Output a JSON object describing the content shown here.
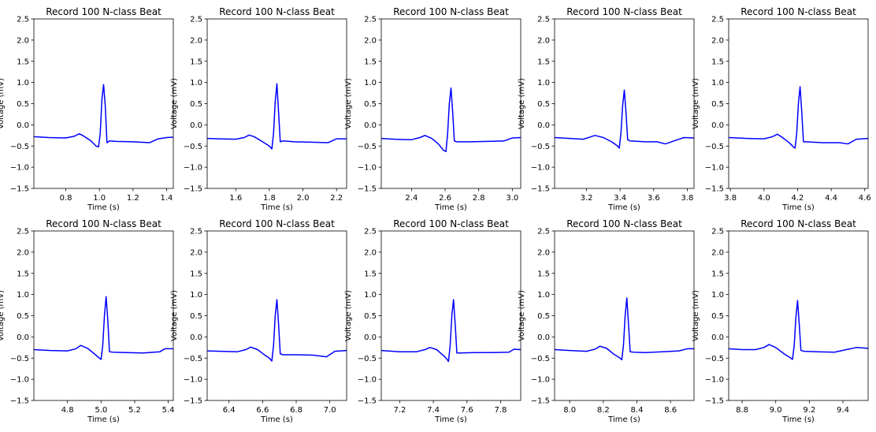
{
  "figure": {
    "rows": 2,
    "cols": 5,
    "line_color": "#0000ff",
    "frame_color": "#000000",
    "background": "#ffffff"
  },
  "chart_data": [
    {
      "type": "line",
      "title": "Record 100 N-class Beat",
      "xlabel": "Time (s)",
      "ylabel": "Voltage (mV)",
      "xlim": [
        0.61,
        1.44
      ],
      "ylim": [
        -1.5,
        2.5
      ],
      "xticks": [
        "0.8",
        "1.0",
        "1.2",
        "1.4"
      ],
      "yticks": [
        "−1.5",
        "−1.0",
        "−0.5",
        "0.0",
        "0.5",
        "1.0",
        "1.5",
        "2.0",
        "2.5"
      ],
      "series": [
        {
          "x": [
            0.61,
            0.7,
            0.8,
            0.85,
            0.88,
            0.9,
            0.95,
            0.98,
            0.995,
            1.005,
            1.015,
            1.025,
            1.035,
            1.045,
            1.06,
            1.1,
            1.2,
            1.3,
            1.35,
            1.4,
            1.44
          ],
          "y": [
            -0.28,
            -0.3,
            -0.31,
            -0.27,
            -0.21,
            -0.25,
            -0.38,
            -0.5,
            -0.52,
            -0.2,
            0.6,
            0.95,
            0.45,
            -0.42,
            -0.38,
            -0.39,
            -0.4,
            -0.42,
            -0.33,
            -0.3,
            -0.29
          ]
        }
      ]
    },
    {
      "type": "line",
      "title": "Record 100 N-class Beat",
      "xlabel": "Time (s)",
      "ylabel": "Voltage (mV)",
      "xlim": [
        1.43,
        2.26
      ],
      "ylim": [
        -1.5,
        2.5
      ],
      "xticks": [
        "1.6",
        "1.8",
        "2.0",
        "2.2"
      ],
      "yticks": [
        "−1.5",
        "−1.0",
        "−0.5",
        "0.0",
        "0.5",
        "1.0",
        "1.5",
        "2.0",
        "2.5"
      ],
      "series": [
        {
          "x": [
            1.43,
            1.5,
            1.6,
            1.65,
            1.68,
            1.71,
            1.76,
            1.8,
            1.815,
            1.825,
            1.835,
            1.845,
            1.855,
            1.865,
            1.88,
            1.95,
            2.05,
            2.15,
            2.2,
            2.26
          ],
          "y": [
            -0.32,
            -0.33,
            -0.34,
            -0.3,
            -0.24,
            -0.28,
            -0.4,
            -0.5,
            -0.57,
            -0.2,
            0.55,
            0.97,
            0.3,
            -0.4,
            -0.38,
            -0.4,
            -0.41,
            -0.42,
            -0.33,
            -0.33
          ]
        }
      ]
    },
    {
      "type": "line",
      "title": "Record 100 N-class Beat",
      "xlabel": "Time (s)",
      "ylabel": "Voltage (mV)",
      "xlim": [
        2.22,
        3.05
      ],
      "ylim": [
        -1.5,
        2.5
      ],
      "xticks": [
        "2.4",
        "2.6",
        "2.8",
        "3.0"
      ],
      "yticks": [
        "−1.5",
        "−1.0",
        "−0.5",
        "0.0",
        "0.5",
        "1.0",
        "1.5",
        "2.0",
        "2.5"
      ],
      "series": [
        {
          "x": [
            2.22,
            2.3,
            2.4,
            2.45,
            2.48,
            2.52,
            2.56,
            2.59,
            2.605,
            2.615,
            2.625,
            2.635,
            2.645,
            2.655,
            2.67,
            2.75,
            2.85,
            2.95,
            3.0,
            3.05
          ],
          "y": [
            -0.32,
            -0.34,
            -0.35,
            -0.3,
            -0.25,
            -0.32,
            -0.45,
            -0.6,
            -0.63,
            -0.2,
            0.5,
            0.87,
            0.3,
            -0.38,
            -0.4,
            -0.4,
            -0.39,
            -0.38,
            -0.31,
            -0.3
          ]
        }
      ]
    },
    {
      "type": "line",
      "title": "Record 100 N-class Beat",
      "xlabel": "Time (s)",
      "ylabel": "Voltage (mV)",
      "xlim": [
        3.01,
        3.84
      ],
      "ylim": [
        -1.5,
        2.5
      ],
      "xticks": [
        "3.2",
        "3.4",
        "3.6",
        "3.8"
      ],
      "yticks": [
        "−1.5",
        "−1.0",
        "−0.5",
        "0.0",
        "0.5",
        "1.0",
        "1.5",
        "2.0",
        "2.5"
      ],
      "series": [
        {
          "x": [
            3.01,
            3.1,
            3.18,
            3.22,
            3.25,
            3.3,
            3.35,
            3.385,
            3.395,
            3.405,
            3.415,
            3.425,
            3.435,
            3.445,
            3.46,
            3.55,
            3.62,
            3.67,
            3.72,
            3.78,
            3.84
          ],
          "y": [
            -0.3,
            -0.32,
            -0.34,
            -0.29,
            -0.25,
            -0.3,
            -0.4,
            -0.5,
            -0.55,
            -0.2,
            0.45,
            0.82,
            0.3,
            -0.35,
            -0.38,
            -0.4,
            -0.4,
            -0.45,
            -0.38,
            -0.3,
            -0.31
          ]
        }
      ]
    },
    {
      "type": "line",
      "title": "Record 100 N-class Beat",
      "xlabel": "Time (s)",
      "ylabel": "Voltage (mV)",
      "xlim": [
        3.79,
        4.62
      ],
      "ylim": [
        -1.5,
        2.5
      ],
      "xticks": [
        "3.8",
        "4.0",
        "4.2",
        "4.4",
        "4.6"
      ],
      "yticks": [
        "−1.5",
        "−1.0",
        "−0.5",
        "0.0",
        "0.5",
        "1.0",
        "1.5",
        "2.0",
        "2.5"
      ],
      "series": [
        {
          "x": [
            3.79,
            3.9,
            4.0,
            4.05,
            4.08,
            4.11,
            4.15,
            4.175,
            4.185,
            4.195,
            4.205,
            4.215,
            4.225,
            4.235,
            4.25,
            4.35,
            4.45,
            4.5,
            4.55,
            4.62
          ],
          "y": [
            -0.3,
            -0.32,
            -0.33,
            -0.28,
            -0.22,
            -0.3,
            -0.42,
            -0.52,
            -0.55,
            -0.2,
            0.5,
            0.9,
            0.3,
            -0.4,
            -0.4,
            -0.42,
            -0.42,
            -0.45,
            -0.34,
            -0.32
          ]
        }
      ]
    },
    {
      "type": "line",
      "title": "Record 100 N-class Beat",
      "xlabel": "Time (s)",
      "ylabel": "Voltage (mV)",
      "xlim": [
        4.6,
        5.43
      ],
      "ylim": [
        -1.5,
        2.5
      ],
      "xticks": [
        "4.8",
        "5.0",
        "5.2",
        "5.4"
      ],
      "yticks": [
        "−1.5",
        "−1.0",
        "−0.5",
        "0.0",
        "0.5",
        "1.0",
        "1.5",
        "2.0",
        "2.5"
      ],
      "series": [
        {
          "x": [
            4.6,
            4.7,
            4.8,
            4.85,
            4.88,
            4.92,
            4.96,
            4.99,
            5.0,
            5.01,
            5.02,
            5.03,
            5.04,
            5.05,
            5.07,
            5.15,
            5.25,
            5.35,
            5.38,
            5.43
          ],
          "y": [
            -0.3,
            -0.32,
            -0.33,
            -0.28,
            -0.2,
            -0.27,
            -0.4,
            -0.5,
            -0.53,
            -0.2,
            0.5,
            0.95,
            0.4,
            -0.35,
            -0.36,
            -0.37,
            -0.38,
            -0.35,
            -0.28,
            -0.28
          ]
        }
      ]
    },
    {
      "type": "line",
      "title": "Record 100 N-class Beat",
      "xlabel": "Time (s)",
      "ylabel": "Voltage (mV)",
      "xlim": [
        6.27,
        7.1
      ],
      "ylim": [
        -1.5,
        2.5
      ],
      "xticks": [
        "6.4",
        "6.6",
        "6.8",
        "7.0"
      ],
      "yticks": [
        "−1.5",
        "−1.0",
        "−0.5",
        "0.0",
        "0.5",
        "1.0",
        "1.5",
        "2.0",
        "2.5"
      ],
      "series": [
        {
          "x": [
            6.27,
            6.35,
            6.45,
            6.5,
            6.53,
            6.57,
            6.61,
            6.64,
            6.655,
            6.665,
            6.675,
            6.685,
            6.695,
            6.705,
            6.72,
            6.8,
            6.9,
            6.98,
            7.03,
            7.1
          ],
          "y": [
            -0.33,
            -0.34,
            -0.35,
            -0.3,
            -0.24,
            -0.3,
            -0.42,
            -0.5,
            -0.57,
            -0.2,
            0.5,
            0.88,
            0.3,
            -0.4,
            -0.42,
            -0.42,
            -0.43,
            -0.47,
            -0.34,
            -0.32
          ]
        }
      ]
    },
    {
      "type": "line",
      "title": "Record 100 N-class Beat",
      "xlabel": "Time (s)",
      "ylabel": "Voltage (mV)",
      "xlim": [
        7.09,
        7.92
      ],
      "ylim": [
        -1.5,
        2.5
      ],
      "xticks": [
        "7.2",
        "7.4",
        "7.6",
        "7.8"
      ],
      "yticks": [
        "−1.5",
        "−1.0",
        "−0.5",
        "0.0",
        "0.5",
        "1.0",
        "1.5",
        "2.0",
        "2.5"
      ],
      "series": [
        {
          "x": [
            7.09,
            7.2,
            7.3,
            7.35,
            7.38,
            7.42,
            7.46,
            7.48,
            7.49,
            7.5,
            7.51,
            7.52,
            7.53,
            7.54,
            7.56,
            7.65,
            7.75,
            7.85,
            7.88,
            7.92
          ],
          "y": [
            -0.32,
            -0.35,
            -0.35,
            -0.3,
            -0.25,
            -0.3,
            -0.44,
            -0.52,
            -0.58,
            -0.2,
            0.5,
            0.88,
            0.3,
            -0.38,
            -0.38,
            -0.37,
            -0.37,
            -0.36,
            -0.29,
            -0.3
          ]
        }
      ]
    },
    {
      "type": "line",
      "title": "Record 100 N-class Beat",
      "xlabel": "Time (s)",
      "ylabel": "Voltage (mV)",
      "xlim": [
        7.91,
        8.74
      ],
      "ylim": [
        -1.5,
        2.5
      ],
      "xticks": [
        "8.0",
        "8.2",
        "8.4",
        "8.6"
      ],
      "yticks": [
        "−1.5",
        "−1.0",
        "−0.5",
        "0.0",
        "0.5",
        "1.0",
        "1.5",
        "2.0",
        "2.5"
      ],
      "series": [
        {
          "x": [
            7.91,
            8.0,
            8.1,
            8.15,
            8.18,
            8.22,
            8.26,
            8.3,
            8.31,
            8.32,
            8.33,
            8.34,
            8.35,
            8.36,
            8.38,
            8.45,
            8.55,
            8.65,
            8.7,
            8.74
          ],
          "y": [
            -0.3,
            -0.32,
            -0.34,
            -0.29,
            -0.22,
            -0.27,
            -0.4,
            -0.5,
            -0.54,
            -0.2,
            0.5,
            0.92,
            0.3,
            -0.35,
            -0.36,
            -0.37,
            -0.35,
            -0.33,
            -0.28,
            -0.28
          ]
        }
      ]
    },
    {
      "type": "line",
      "title": "Record 100 N-class Beat",
      "xlabel": "Time (s)",
      "ylabel": "Voltage (mV)",
      "xlim": [
        8.72,
        9.55
      ],
      "ylim": [
        -1.5,
        2.5
      ],
      "xticks": [
        "8.8",
        "9.0",
        "9.2",
        "9.4"
      ],
      "yticks": [
        "−1.5",
        "−1.0",
        "−0.5",
        "0.0",
        "0.5",
        "1.0",
        "1.5",
        "2.0",
        "2.5"
      ],
      "series": [
        {
          "x": [
            8.72,
            8.8,
            8.88,
            8.93,
            8.96,
            9.0,
            9.05,
            9.09,
            9.1,
            9.11,
            9.12,
            9.13,
            9.14,
            9.15,
            9.17,
            9.25,
            9.35,
            9.42,
            9.48,
            9.55
          ],
          "y": [
            -0.28,
            -0.3,
            -0.3,
            -0.25,
            -0.18,
            -0.25,
            -0.4,
            -0.5,
            -0.53,
            -0.2,
            0.45,
            0.86,
            0.3,
            -0.32,
            -0.34,
            -0.35,
            -0.36,
            -0.3,
            -0.25,
            -0.27
          ]
        }
      ]
    }
  ]
}
